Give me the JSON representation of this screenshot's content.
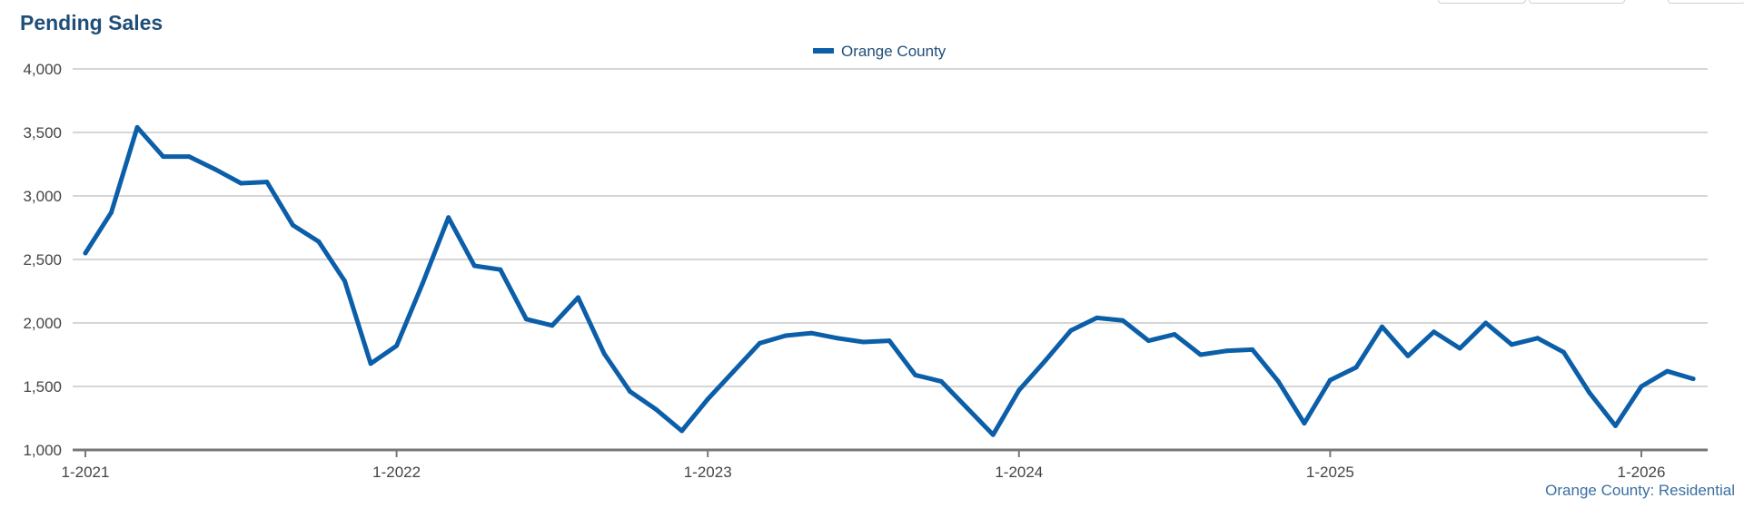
{
  "title": "Pending Sales",
  "caption": "Orange County: Residential",
  "colors": {
    "series": "#0b5ea8",
    "title": "#1f4e79",
    "grid": "#c8c8c8",
    "axis": "#777777"
  },
  "chart_data": {
    "type": "line",
    "title": "Pending Sales",
    "xlabel": "",
    "ylabel": "",
    "ylim": [
      1000,
      4000
    ],
    "yticks": [
      "1,000",
      "1,500",
      "2,000",
      "2,500",
      "3,000",
      "3,500",
      "4,000"
    ],
    "xticks": [
      "1-2021",
      "1-2022",
      "1-2023",
      "1-2024",
      "1-2025",
      "1-2026"
    ],
    "legend": "top-center",
    "grid": true,
    "series": [
      {
        "name": "Orange County",
        "start": "1-2021",
        "values": [
          2550,
          2870,
          3540,
          3310,
          3310,
          3210,
          3100,
          3110,
          2770,
          2640,
          2330,
          1680,
          1820,
          2310,
          2830,
          2450,
          2420,
          2030,
          1980,
          2200,
          1760,
          1460,
          1320,
          1150,
          1400,
          1620,
          1840,
          1900,
          1920,
          1880,
          1850,
          1860,
          1590,
          1540,
          1330,
          1120,
          1470,
          1700,
          1940,
          2040,
          2020,
          1860,
          1910,
          1750,
          1780,
          1790,
          1540,
          1210,
          1550,
          1650,
          1970,
          1740,
          1930,
          1800,
          2000,
          1830,
          1880,
          1770,
          1450,
          1190,
          1500,
          1620,
          1560
        ]
      }
    ]
  }
}
